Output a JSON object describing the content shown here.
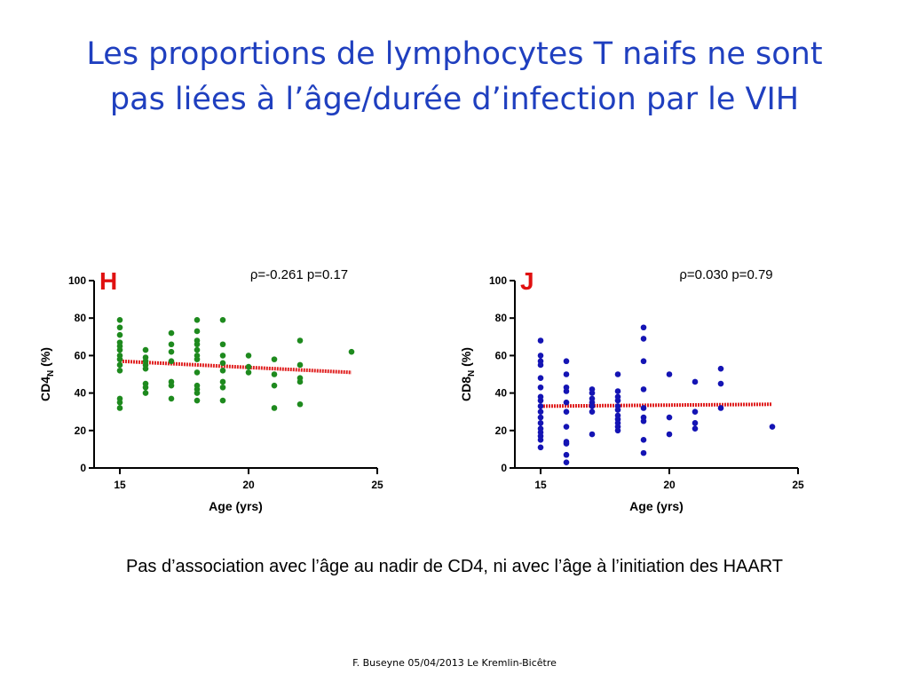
{
  "slide": {
    "title_line1": "Les proportions de lymphocytes T naifs ne sont",
    "title_line2": "pas liées à l’âge/durée d’infection par le VIH",
    "caption": "Pas d’association avec l’âge au nadir de CD4, ni avec l’âge à l’initiation des HAART",
    "footer": "F. Buseyne  05/04/2013  Le Kremlin-Bicêtre"
  },
  "chart_data": [
    {
      "type": "scatter",
      "panel_label": "H",
      "stat_label": "ρ=-0.261 p=0.17",
      "ylabel_main": "CD4",
      "ylabel_sub": "N",
      "ylabel_tail": " (%)",
      "xlabel": "Age (yrs)",
      "xlim": [
        14,
        25
      ],
      "ylim": [
        0,
        100
      ],
      "xticks": [
        15,
        20,
        25
      ],
      "yticks": [
        0,
        20,
        40,
        60,
        80,
        100
      ],
      "point_color": "#1e8a1e",
      "trend_color": "#e02020",
      "trendline": {
        "x": [
          15,
          24
        ],
        "y": [
          57,
          51
        ]
      },
      "points": [
        {
          "x": 15,
          "y": 79
        },
        {
          "x": 15,
          "y": 75
        },
        {
          "x": 15,
          "y": 71
        },
        {
          "x": 15,
          "y": 67
        },
        {
          "x": 15,
          "y": 65
        },
        {
          "x": 15,
          "y": 63
        },
        {
          "x": 15,
          "y": 60
        },
        {
          "x": 15,
          "y": 58
        },
        {
          "x": 15,
          "y": 55
        },
        {
          "x": 15,
          "y": 52
        },
        {
          "x": 15,
          "y": 37
        },
        {
          "x": 15,
          "y": 35
        },
        {
          "x": 15,
          "y": 32
        },
        {
          "x": 16,
          "y": 63
        },
        {
          "x": 16,
          "y": 59
        },
        {
          "x": 16,
          "y": 57
        },
        {
          "x": 16,
          "y": 55
        },
        {
          "x": 16,
          "y": 53
        },
        {
          "x": 16,
          "y": 45
        },
        {
          "x": 16,
          "y": 43
        },
        {
          "x": 16,
          "y": 40
        },
        {
          "x": 17,
          "y": 72
        },
        {
          "x": 17,
          "y": 66
        },
        {
          "x": 17,
          "y": 62
        },
        {
          "x": 17,
          "y": 57
        },
        {
          "x": 17,
          "y": 46
        },
        {
          "x": 17,
          "y": 44
        },
        {
          "x": 17,
          "y": 37
        },
        {
          "x": 18,
          "y": 79
        },
        {
          "x": 18,
          "y": 73
        },
        {
          "x": 18,
          "y": 68
        },
        {
          "x": 18,
          "y": 66
        },
        {
          "x": 18,
          "y": 63
        },
        {
          "x": 18,
          "y": 60
        },
        {
          "x": 18,
          "y": 58
        },
        {
          "x": 18,
          "y": 51
        },
        {
          "x": 18,
          "y": 44
        },
        {
          "x": 18,
          "y": 42
        },
        {
          "x": 18,
          "y": 40
        },
        {
          "x": 18,
          "y": 36
        },
        {
          "x": 19,
          "y": 79
        },
        {
          "x": 19,
          "y": 66
        },
        {
          "x": 19,
          "y": 60
        },
        {
          "x": 19,
          "y": 56
        },
        {
          "x": 19,
          "y": 52
        },
        {
          "x": 19,
          "y": 46
        },
        {
          "x": 19,
          "y": 43
        },
        {
          "x": 19,
          "y": 36
        },
        {
          "x": 20,
          "y": 60
        },
        {
          "x": 20,
          "y": 54
        },
        {
          "x": 20,
          "y": 51
        },
        {
          "x": 21,
          "y": 58
        },
        {
          "x": 21,
          "y": 50
        },
        {
          "x": 21,
          "y": 44
        },
        {
          "x": 21,
          "y": 32
        },
        {
          "x": 22,
          "y": 68
        },
        {
          "x": 22,
          "y": 55
        },
        {
          "x": 22,
          "y": 48
        },
        {
          "x": 22,
          "y": 46
        },
        {
          "x": 22,
          "y": 34
        },
        {
          "x": 24,
          "y": 62
        }
      ]
    },
    {
      "type": "scatter",
      "panel_label": "J",
      "stat_label": "ρ=0.030 p=0.79",
      "ylabel_main": "CD8",
      "ylabel_sub": "N",
      "ylabel_tail": " (%)",
      "xlabel": "Age (yrs)",
      "xlim": [
        14,
        25
      ],
      "ylim": [
        0,
        100
      ],
      "xticks": [
        15,
        20,
        25
      ],
      "yticks": [
        0,
        20,
        40,
        60,
        80,
        100
      ],
      "point_color": "#1414b4",
      "trend_color": "#e02020",
      "trendline": {
        "x": [
          15,
          24
        ],
        "y": [
          33,
          34
        ]
      },
      "points": [
        {
          "x": 15,
          "y": 68
        },
        {
          "x": 15,
          "y": 60
        },
        {
          "x": 15,
          "y": 57
        },
        {
          "x": 15,
          "y": 55
        },
        {
          "x": 15,
          "y": 48
        },
        {
          "x": 15,
          "y": 43
        },
        {
          "x": 15,
          "y": 38
        },
        {
          "x": 15,
          "y": 36
        },
        {
          "x": 15,
          "y": 33
        },
        {
          "x": 15,
          "y": 30
        },
        {
          "x": 15,
          "y": 27
        },
        {
          "x": 15,
          "y": 24
        },
        {
          "x": 15,
          "y": 21
        },
        {
          "x": 15,
          "y": 19
        },
        {
          "x": 15,
          "y": 17
        },
        {
          "x": 15,
          "y": 15
        },
        {
          "x": 15,
          "y": 11
        },
        {
          "x": 16,
          "y": 57
        },
        {
          "x": 16,
          "y": 50
        },
        {
          "x": 16,
          "y": 43
        },
        {
          "x": 16,
          "y": 41
        },
        {
          "x": 16,
          "y": 35
        },
        {
          "x": 16,
          "y": 30
        },
        {
          "x": 16,
          "y": 22
        },
        {
          "x": 16,
          "y": 14
        },
        {
          "x": 16,
          "y": 13
        },
        {
          "x": 16,
          "y": 7
        },
        {
          "x": 16,
          "y": 3
        },
        {
          "x": 17,
          "y": 42
        },
        {
          "x": 17,
          "y": 40
        },
        {
          "x": 17,
          "y": 37
        },
        {
          "x": 17,
          "y": 35
        },
        {
          "x": 17,
          "y": 33
        },
        {
          "x": 17,
          "y": 30
        },
        {
          "x": 17,
          "y": 18
        },
        {
          "x": 18,
          "y": 50
        },
        {
          "x": 18,
          "y": 41
        },
        {
          "x": 18,
          "y": 38
        },
        {
          "x": 18,
          "y": 36
        },
        {
          "x": 18,
          "y": 33
        },
        {
          "x": 18,
          "y": 31
        },
        {
          "x": 18,
          "y": 28
        },
        {
          "x": 18,
          "y": 26
        },
        {
          "x": 18,
          "y": 24
        },
        {
          "x": 18,
          "y": 22
        },
        {
          "x": 18,
          "y": 20
        },
        {
          "x": 19,
          "y": 75
        },
        {
          "x": 19,
          "y": 69
        },
        {
          "x": 19,
          "y": 57
        },
        {
          "x": 19,
          "y": 42
        },
        {
          "x": 19,
          "y": 32
        },
        {
          "x": 19,
          "y": 27
        },
        {
          "x": 19,
          "y": 25
        },
        {
          "x": 19,
          "y": 15
        },
        {
          "x": 19,
          "y": 8
        },
        {
          "x": 20,
          "y": 50
        },
        {
          "x": 20,
          "y": 27
        },
        {
          "x": 20,
          "y": 18
        },
        {
          "x": 21,
          "y": 46
        },
        {
          "x": 21,
          "y": 30
        },
        {
          "x": 21,
          "y": 24
        },
        {
          "x": 21,
          "y": 21
        },
        {
          "x": 22,
          "y": 53
        },
        {
          "x": 22,
          "y": 45
        },
        {
          "x": 22,
          "y": 32
        },
        {
          "x": 24,
          "y": 22
        }
      ]
    }
  ]
}
